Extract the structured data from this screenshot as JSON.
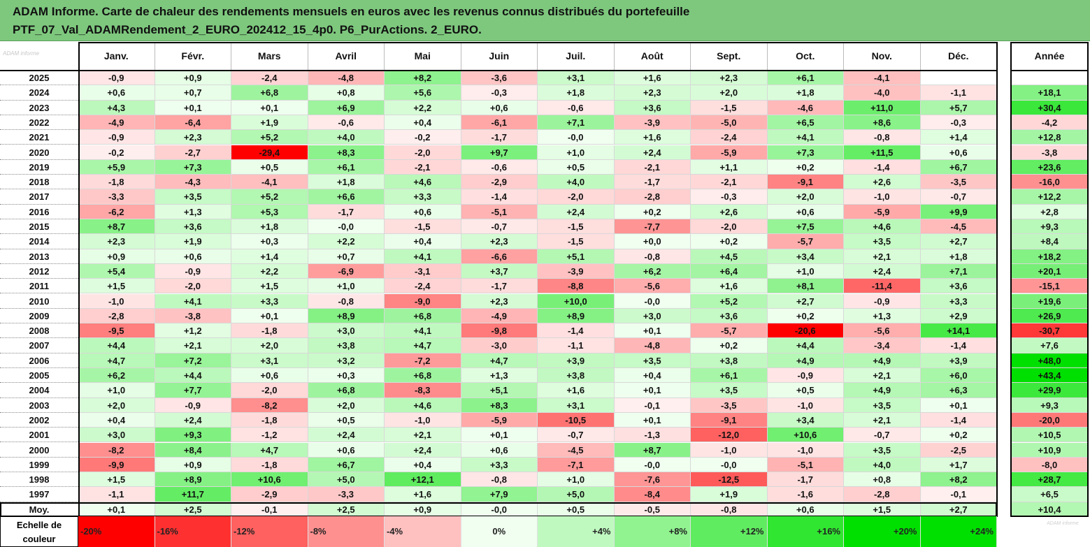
{
  "title": {
    "line1": "ADAM Informe. Carte de chaleur des rendements mensuels en euros avec les revenus connus distribués du portefeuille",
    "line2": "PTF_07_Val_ADAMRendement_2_EURO_202412_15_4p0. P6_PurActions. 2_EURO."
  },
  "corner_logo": "ADAM informe",
  "watermark": "ADAM informe",
  "colors": {
    "header_bg": "#7ec87e",
    "negative_max": "#ff0000",
    "positive_max": "#00e000",
    "neutral": "#ffffff"
  },
  "chart_data": {
    "type": "heatmap",
    "columns": [
      "Janv.",
      "Févr.",
      "Mars",
      "Avril",
      "Mai",
      "Juin",
      "Juil.",
      "Août",
      "Sept.",
      "Oct.",
      "Nov.",
      "Déc."
    ],
    "annual_column": "Année",
    "rows": [
      {
        "year": "2025",
        "values": [
          "-0,9",
          "+0,9",
          "-2,4",
          "-4,8",
          "+8,2",
          "-3,6",
          "+3,1",
          "+1,6",
          "+2,3",
          "+6,1",
          "-4,1",
          ""
        ],
        "annual": ""
      },
      {
        "year": "2024",
        "values": [
          "+0,6",
          "+0,7",
          "+6,8",
          "+0,8",
          "+5,6",
          "-0,3",
          "+1,8",
          "+2,3",
          "+2,0",
          "+1,8",
          "-4,0",
          "-1,1"
        ],
        "annual": "+18,1"
      },
      {
        "year": "2023",
        "values": [
          "+4,3",
          "+0,1",
          "+0,1",
          "+6,9",
          "+2,2",
          "+0,6",
          "-0,6",
          "+3,6",
          "-1,5",
          "-4,6",
          "+11,0",
          "+5,7"
        ],
        "annual": "+30,4"
      },
      {
        "year": "2022",
        "values": [
          "-4,9",
          "-6,4",
          "+1,9",
          "-0,6",
          "+0,4",
          "-6,1",
          "+7,1",
          "-3,9",
          "-5,0",
          "+6,5",
          "+8,6",
          "-0,3"
        ],
        "annual": "-4,2"
      },
      {
        "year": "2021",
        "values": [
          "-0,9",
          "+2,3",
          "+5,2",
          "+4,0",
          "-0,2",
          "-1,7",
          "-0,0",
          "+1,6",
          "-2,4",
          "+4,1",
          "-0,8",
          "+1,4"
        ],
        "annual": "+12,8"
      },
      {
        "year": "2020",
        "values": [
          "-0,2",
          "-2,7",
          "-29,4",
          "+8,3",
          "-2,0",
          "+9,7",
          "+1,0",
          "+2,4",
          "-5,9",
          "+7,3",
          "+11,5",
          "+0,6"
        ],
        "annual": "-3,8"
      },
      {
        "year": "2019",
        "values": [
          "+5,9",
          "+7,3",
          "+0,5",
          "+6,1",
          "-2,1",
          "-0,6",
          "+0,5",
          "-2,1",
          "+1,1",
          "+0,2",
          "-1,4",
          "+6,7"
        ],
        "annual": "+23,6"
      },
      {
        "year": "2018",
        "values": [
          "-1,8",
          "-4,3",
          "-4,1",
          "+1,8",
          "+4,6",
          "-2,9",
          "+4,0",
          "-1,7",
          "-2,1",
          "-9,1",
          "+2,6",
          "-3,5"
        ],
        "annual": "-16,0"
      },
      {
        "year": "2017",
        "values": [
          "-3,3",
          "+3,5",
          "+5,2",
          "+6,6",
          "+3,3",
          "-1,4",
          "-2,0",
          "-2,8",
          "-0,3",
          "+2,0",
          "-1,0",
          "-0,7"
        ],
        "annual": "+12,2"
      },
      {
        "year": "2016",
        "values": [
          "-6,2",
          "+1,3",
          "+5,3",
          "-1,7",
          "+0,6",
          "-5,1",
          "+2,4",
          "+0,2",
          "+2,6",
          "+0,6",
          "-5,9",
          "+9,9"
        ],
        "annual": "+2,8"
      },
      {
        "year": "2015",
        "values": [
          "+8,7",
          "+3,6",
          "+1,8",
          "-0,0",
          "-1,5",
          "-0,7",
          "-1,5",
          "-7,7",
          "-2,0",
          "+7,5",
          "+4,6",
          "-4,5"
        ],
        "annual": "+9,3"
      },
      {
        "year": "2014",
        "values": [
          "+2,3",
          "+1,9",
          "+0,3",
          "+2,2",
          "+0,4",
          "+2,3",
          "-1,5",
          "+0,0",
          "+0,2",
          "-5,7",
          "+3,5",
          "+2,7"
        ],
        "annual": "+8,4"
      },
      {
        "year": "2013",
        "values": [
          "+0,9",
          "+0,6",
          "+1,4",
          "+0,7",
          "+4,1",
          "-6,6",
          "+5,1",
          "-0,8",
          "+4,5",
          "+3,4",
          "+2,1",
          "+1,8"
        ],
        "annual": "+18,2"
      },
      {
        "year": "2012",
        "values": [
          "+5,4",
          "-0,9",
          "+2,2",
          "-6,9",
          "-3,1",
          "+3,7",
          "-3,9",
          "+6,2",
          "+6,4",
          "+1,0",
          "+2,4",
          "+7,1"
        ],
        "annual": "+20,1"
      },
      {
        "year": "2011",
        "values": [
          "+1,5",
          "-2,0",
          "+1,5",
          "+1,0",
          "-2,4",
          "-1,7",
          "-8,8",
          "-5,6",
          "+1,6",
          "+8,1",
          "-11,4",
          "+3,6"
        ],
        "annual": "-15,1"
      },
      {
        "year": "2010",
        "values": [
          "-1,0",
          "+4,1",
          "+3,3",
          "-0,8",
          "-9,0",
          "+2,3",
          "+10,0",
          "-0,0",
          "+5,2",
          "+2,7",
          "-0,9",
          "+3,3"
        ],
        "annual": "+19,6"
      },
      {
        "year": "2009",
        "values": [
          "-2,8",
          "-3,8",
          "+0,1",
          "+8,9",
          "+6,8",
          "-4,9",
          "+8,9",
          "+3,0",
          "+3,6",
          "+0,2",
          "+1,3",
          "+2,9"
        ],
        "annual": "+26,9"
      },
      {
        "year": "2008",
        "values": [
          "-9,5",
          "+1,2",
          "-1,8",
          "+3,0",
          "+4,1",
          "-9,8",
          "-1,4",
          "+0,1",
          "-5,7",
          "-20,6",
          "-5,6",
          "+14,1"
        ],
        "annual": "-30,7"
      },
      {
        "year": "2007",
        "values": [
          "+4,4",
          "+2,1",
          "+2,0",
          "+3,8",
          "+4,7",
          "-3,0",
          "-1,1",
          "-4,8",
          "+0,2",
          "+4,4",
          "-3,4",
          "-1,4"
        ],
        "annual": "+7,6"
      },
      {
        "year": "2006",
        "values": [
          "+4,7",
          "+7,2",
          "+3,1",
          "+3,2",
          "-7,2",
          "+4,7",
          "+3,9",
          "+3,5",
          "+3,8",
          "+4,9",
          "+4,9",
          "+3,9"
        ],
        "annual": "+48,0"
      },
      {
        "year": "2005",
        "values": [
          "+6,2",
          "+4,4",
          "+0,6",
          "+0,3",
          "+6,8",
          "+1,3",
          "+3,8",
          "+0,4",
          "+6,1",
          "-0,9",
          "+2,1",
          "+6,0"
        ],
        "annual": "+43,4"
      },
      {
        "year": "2004",
        "values": [
          "+1,0",
          "+7,7",
          "-2,0",
          "+6,8",
          "-8,3",
          "+5,1",
          "+1,6",
          "+0,1",
          "+3,5",
          "+0,5",
          "+4,9",
          "+6,3"
        ],
        "annual": "+29,9"
      },
      {
        "year": "2003",
        "values": [
          "+2,0",
          "-0,9",
          "-8,2",
          "+2,0",
          "+4,6",
          "+8,3",
          "+3,1",
          "-0,1",
          "-3,5",
          "-1,0",
          "+3,5",
          "+0,1"
        ],
        "annual": "+9,3"
      },
      {
        "year": "2002",
        "values": [
          "+0,4",
          "+2,4",
          "-1,8",
          "+0,5",
          "-1,0",
          "-5,9",
          "-10,5",
          "+0,1",
          "-9,1",
          "+3,4",
          "+2,1",
          "-1,4"
        ],
        "annual": "-20,0"
      },
      {
        "year": "2001",
        "values": [
          "+3,0",
          "+9,3",
          "-1,2",
          "+2,4",
          "+2,1",
          "+0,1",
          "-0,7",
          "-1,3",
          "-12,0",
          "+10,6",
          "-0,7",
          "+0,2"
        ],
        "annual": "+10,5"
      },
      {
        "year": "2000",
        "values": [
          "-8,2",
          "+8,4",
          "+4,7",
          "+0,6",
          "+2,4",
          "+0,6",
          "-4,5",
          "+8,7",
          "-1,0",
          "-1,0",
          "+3,5",
          "-2,5"
        ],
        "annual": "+10,9"
      },
      {
        "year": "1999",
        "values": [
          "-9,9",
          "+0,9",
          "-1,8",
          "+6,7",
          "+0,4",
          "+3,3",
          "-7,1",
          "-0,0",
          "-0,0",
          "-5,1",
          "+4,0",
          "+1,7"
        ],
        "annual": "-8,0"
      },
      {
        "year": "1998",
        "values": [
          "+1,5",
          "+8,9",
          "+10,6",
          "+5,0",
          "+12,1",
          "-0,8",
          "+1,0",
          "-7,6",
          "-12,5",
          "-1,7",
          "+0,8",
          "+8,2"
        ],
        "annual": "+28,7"
      },
      {
        "year": "1997",
        "values": [
          "-1,1",
          "+11,7",
          "-2,9",
          "-3,3",
          "+1,6",
          "+7,9",
          "+5,0",
          "-8,4",
          "+1,9",
          "-1,6",
          "-2,8",
          "-0,1"
        ],
        "annual": "+6,5"
      }
    ],
    "average_row": {
      "label": "Moy.",
      "values": [
        "+0,1",
        "+2,5",
        "-0,1",
        "+2,5",
        "+0,9",
        "-0,0",
        "+0,5",
        "-0,5",
        "-0,8",
        "+0,6",
        "+1,5",
        "+2,7"
      ],
      "annual": "+10,4"
    },
    "color_scale": {
      "label": "Echelle de couleur",
      "stops": [
        {
          "label": "-20%",
          "value": -20
        },
        {
          "label": "-16%",
          "value": -16
        },
        {
          "label": "-12%",
          "value": -12
        },
        {
          "label": "-8%",
          "value": -8
        },
        {
          "label": "-4%",
          "value": -4
        },
        {
          "label": "0%",
          "value": 0
        },
        {
          "label": "+4%",
          "value": 4
        },
        {
          "label": "+8%",
          "value": 8
        },
        {
          "label": "+12%",
          "value": 12
        },
        {
          "label": "+16%",
          "value": 16
        },
        {
          "label": "+20%",
          "value": 20
        },
        {
          "label": "+24%",
          "value": 24
        }
      ],
      "annual_scale_extent": 40
    }
  }
}
